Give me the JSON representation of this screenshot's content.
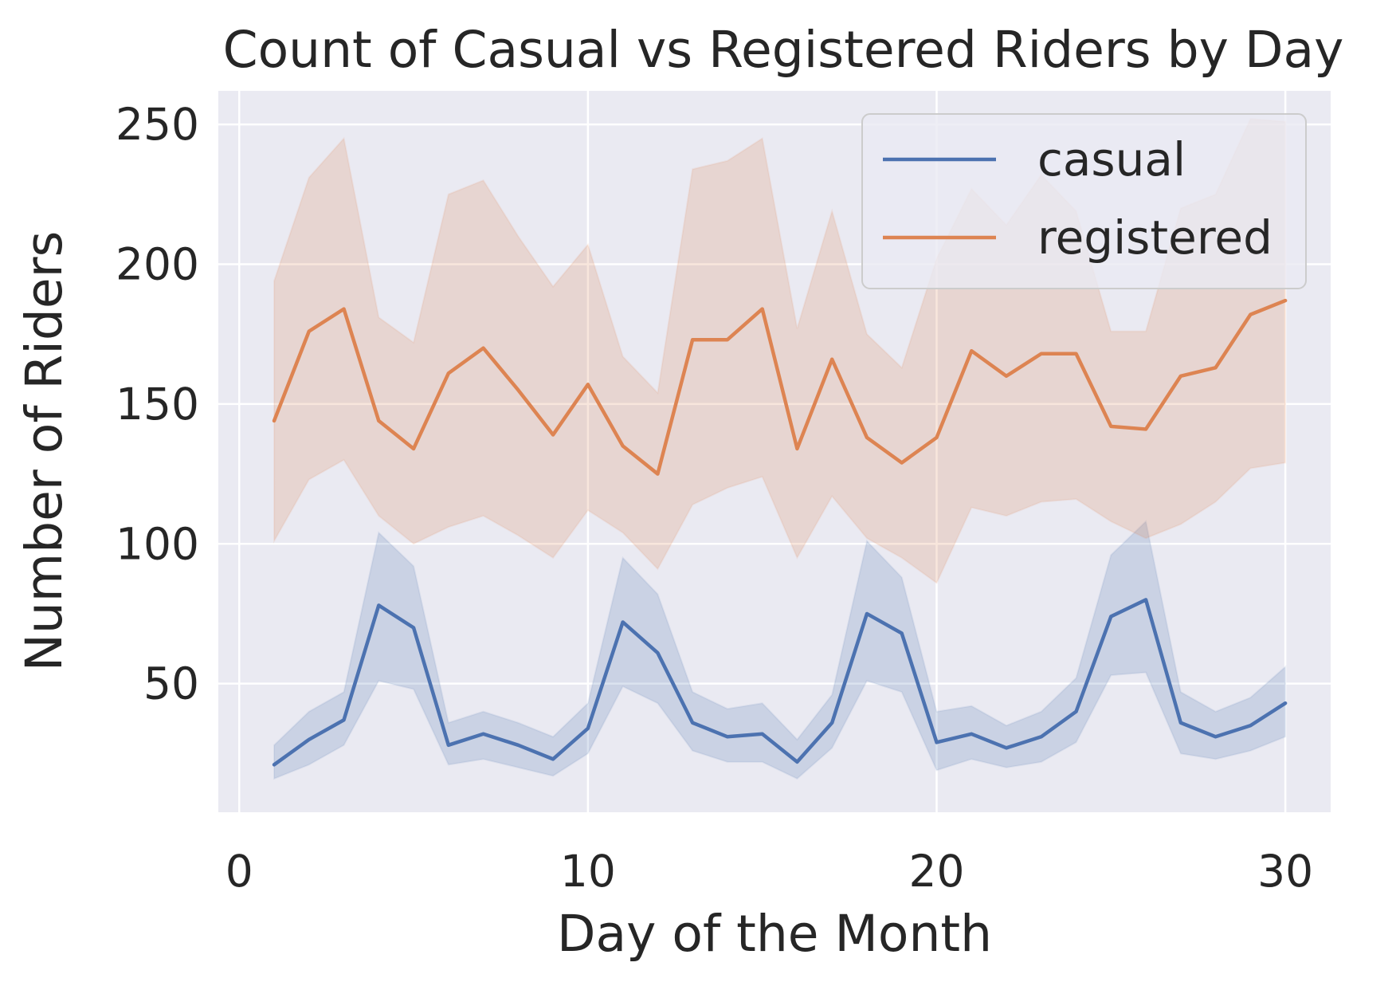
{
  "chart_data": {
    "type": "line",
    "title": "Count of Casual vs Registered Riders by Day",
    "xlabel": "Day of the Month",
    "ylabel": "Number of Riders",
    "xlim": [
      -0.6,
      31.3
    ],
    "ylim": [
      4,
      262
    ],
    "x_ticks": [
      0,
      10,
      20,
      30
    ],
    "y_ticks": [
      50,
      100,
      150,
      200,
      250
    ],
    "grid": true,
    "legend_position": "top-right",
    "x": [
      1,
      2,
      3,
      4,
      5,
      6,
      7,
      8,
      9,
      10,
      11,
      12,
      13,
      14,
      15,
      16,
      17,
      18,
      19,
      20,
      21,
      22,
      23,
      24,
      25,
      26,
      27,
      28,
      29,
      30
    ],
    "series": [
      {
        "name": "casual",
        "color": "#4c72b0",
        "values": [
          21,
          30,
          37,
          78,
          70,
          28,
          32,
          28,
          23,
          34,
          72,
          61,
          36,
          31,
          32,
          22,
          36,
          75,
          68,
          29,
          32,
          27,
          31,
          40,
          74,
          80,
          36,
          31,
          35,
          43
        ],
        "ci_lower": [
          16,
          21,
          28,
          51,
          48,
          21,
          23,
          20,
          17,
          25,
          49,
          43,
          26,
          22,
          22,
          16,
          27,
          51,
          47,
          19,
          23,
          20,
          22,
          29,
          53,
          54,
          25,
          23,
          26,
          31
        ],
        "ci_upper": [
          28,
          40,
          47,
          104,
          92,
          36,
          40,
          36,
          31,
          43,
          95,
          82,
          47,
          41,
          43,
          30,
          46,
          101,
          88,
          40,
          42,
          35,
          40,
          52,
          96,
          108,
          47,
          40,
          45,
          56
        ]
      },
      {
        "name": "registered",
        "color": "#dd8452",
        "values": [
          144,
          176,
          184,
          144,
          134,
          161,
          170,
          155,
          139,
          157,
          135,
          125,
          173,
          173,
          184,
          134,
          166,
          138,
          129,
          138,
          169,
          160,
          168,
          168,
          142,
          141,
          160,
          163,
          182,
          187
        ],
        "ci_lower": [
          101,
          123,
          130,
          110,
          100,
          106,
          110,
          103,
          95,
          112,
          104,
          91,
          114,
          120,
          124,
          95,
          117,
          102,
          95,
          86,
          113,
          110,
          115,
          116,
          108,
          102,
          107,
          115,
          127,
          129
        ],
        "ci_upper": [
          194,
          231,
          245,
          181,
          172,
          225,
          230,
          210,
          192,
          207,
          167,
          154,
          234,
          237,
          245,
          177,
          219,
          175,
          163,
          202,
          227,
          214,
          232,
          219,
          176,
          176,
          220,
          225,
          252,
          251
        ]
      }
    ]
  }
}
